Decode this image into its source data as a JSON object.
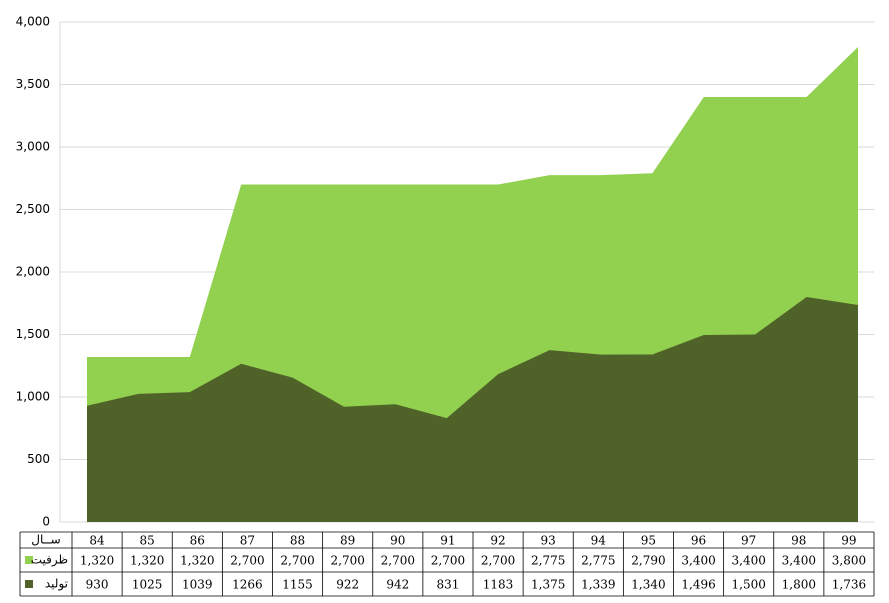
{
  "chart_data": {
    "type": "area",
    "categories": [
      "84",
      "85",
      "86",
      "87",
      "88",
      "89",
      "90",
      "91",
      "92",
      "93",
      "94",
      "95",
      "96",
      "97",
      "98",
      "99"
    ],
    "category_label": "ســال",
    "series": [
      {
        "name": "ظرفیت",
        "color": "#92d050",
        "values": [
          1320,
          1320,
          1320,
          2700,
          2700,
          2700,
          2700,
          2700,
          2700,
          2775,
          2775,
          2790,
          3400,
          3400,
          3400,
          3800
        ],
        "value_labels": [
          "1,320",
          "1,320",
          "1,320",
          "2,700",
          "2,700",
          "2,700",
          "2,700",
          "2,700",
          "2,700",
          "2,775",
          "2,775",
          "2,790",
          "3,400",
          "3,400",
          "3,400",
          "3,800"
        ]
      },
      {
        "name": "تولید",
        "color": "#4f6228",
        "values": [
          930,
          1025,
          1039,
          1266,
          1155,
          922,
          942,
          831,
          1183,
          1375,
          1339,
          1340,
          1496,
          1500,
          1800,
          1736
        ],
        "value_labels": [
          "930",
          "1025",
          "1039",
          "1266",
          "1155",
          "922",
          "942",
          "831",
          "1183",
          "1,375",
          "1,339",
          "1,340",
          "1,496",
          "1,500",
          "1,800",
          "1,736"
        ]
      }
    ],
    "ylim": [
      0,
      4000
    ],
    "yticks": [
      0,
      500,
      {
        "value": 1000,
        "label": "1,000"
      },
      {
        "value": 1500,
        "label": "1,500"
      },
      {
        "value": 2000,
        "label": "2,000"
      },
      {
        "value": 2500,
        "label": "2,500"
      },
      {
        "value": 3000,
        "label": "3,000"
      },
      {
        "value": 3500,
        "label": "3,500"
      },
      {
        "value": 4000,
        "label": "4,000"
      }
    ],
    "grid": true
  }
}
